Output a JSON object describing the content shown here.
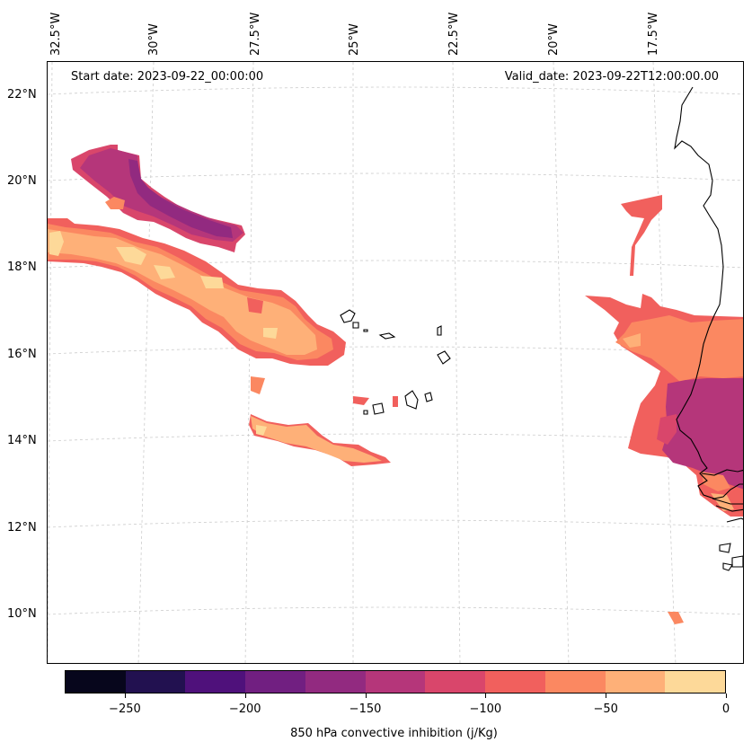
{
  "header": {
    "start_date": "Start date: 2023-09-22_00:00:00",
    "valid_date": "Valid_date: 2023-09-22T12:00:00.00"
  },
  "map": {
    "variable": "850 hPa convective inhibition (j/Kg)",
    "longitude_labels": [
      "32.5°W",
      "30°W",
      "27.5°W",
      "25°W",
      "22.5°W",
      "20°W",
      "17.5°W"
    ],
    "latitude_labels": [
      "22°N",
      "20°N",
      "18°N",
      "16°N",
      "14°N",
      "12°N",
      "10°N"
    ],
    "coastline_color": "#000000",
    "gridline_color": "#cccccc"
  },
  "colorbar": {
    "tick_labels": [
      "−250",
      "−200",
      "−150",
      "−100",
      "−50",
      "0"
    ],
    "tick_values": [
      -250,
      -200,
      -150,
      -100,
      -50,
      0
    ],
    "range": [
      -275,
      0
    ],
    "levels": [
      -275,
      -250,
      -225,
      -200,
      -175,
      -150,
      -125,
      -100,
      -75,
      -50,
      -25,
      0
    ],
    "colors": [
      "#07061c",
      "#221150",
      "#4f117b",
      "#711f81",
      "#922a80",
      "#b5367a",
      "#d9466b",
      "#f1605d",
      "#fb8861",
      "#feb078",
      "#fdd999"
    ],
    "label": "850 hPa convective inhibition (j/Kg)"
  }
}
